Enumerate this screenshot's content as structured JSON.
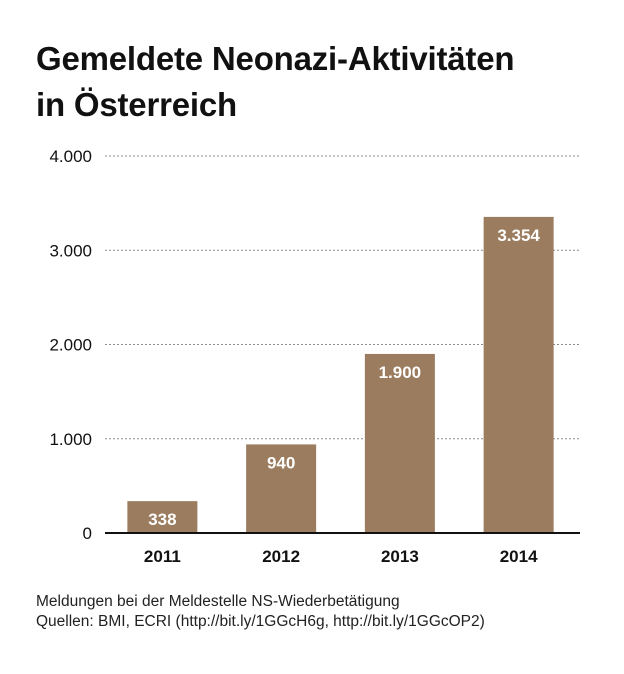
{
  "colors": {
    "bar": "#9b7c5e",
    "grid": "#8a8a8a",
    "text": "#111111",
    "bar_label": "#ffffff"
  },
  "chart_data": {
    "type": "bar",
    "title_lines": [
      "Gemeldete Neonazi-Aktivitäten",
      "in Österreich"
    ],
    "categories": [
      "2011",
      "2012",
      "2013",
      "2014"
    ],
    "values": [
      338,
      940,
      1900,
      3354
    ],
    "value_labels": [
      "338",
      "940",
      "1.900",
      "3.354"
    ],
    "ylim": [
      0,
      4000
    ],
    "yticks": [
      0,
      1000,
      2000,
      3000,
      4000
    ],
    "ytick_labels": [
      "0",
      "1.000",
      "2.000",
      "3.000",
      "4.000"
    ],
    "grid": true,
    "xlabel": "",
    "ylabel": ""
  },
  "footer": {
    "line1": "Meldungen bei der Meldestelle NS-Wiederbetätigung",
    "line2": "Quellen: BMI, ECRI (http://bit.ly/1GGcH6g, http://bit.ly/1GGcOP2)"
  }
}
